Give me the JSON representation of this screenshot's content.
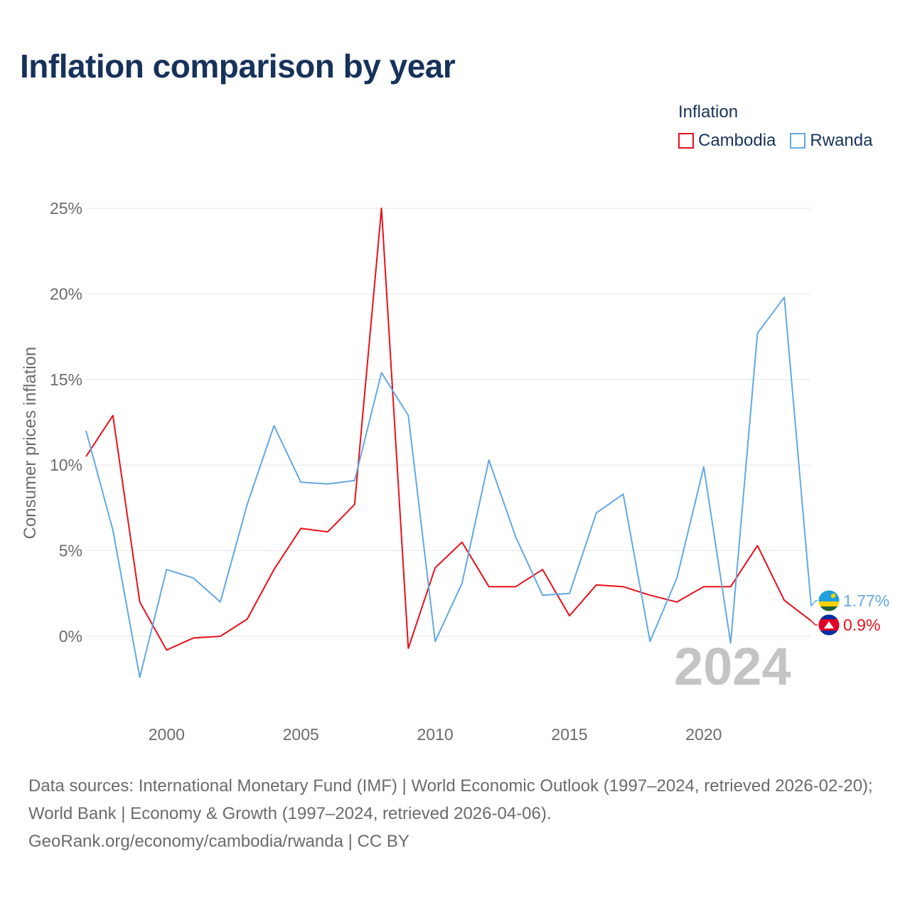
{
  "chart_data": {
    "type": "line",
    "title": "Inflation comparison by year",
    "ylabel": "Consumer prices inflation",
    "xlabel": "",
    "legend_title": "Inflation",
    "legend_position": "top-right",
    "x": [
      1997,
      1998,
      1999,
      2000,
      2001,
      2002,
      2003,
      2004,
      2005,
      2006,
      2007,
      2008,
      2009,
      2010,
      2011,
      2012,
      2013,
      2014,
      2015,
      2016,
      2017,
      2018,
      2019,
      2020,
      2021,
      2022,
      2023,
      2024
    ],
    "xlim": [
      1997,
      2024
    ],
    "ylim": [
      -5,
      25
    ],
    "y_ticks": [
      0,
      5,
      10,
      15,
      20,
      25
    ],
    "y_tick_labels": [
      "0%",
      "5%",
      "10%",
      "15%",
      "20%",
      "25%"
    ],
    "x_ticks": [
      2000,
      2005,
      2010,
      2015,
      2020
    ],
    "x_tick_labels": [
      "2000",
      "2005",
      "2010",
      "2015",
      "2020"
    ],
    "grid": true,
    "current_year_label": "2024",
    "series": [
      {
        "name": "Cambodia",
        "color": "#e8101a",
        "values": [
          10.5,
          12.9,
          2.0,
          -0.8,
          -0.1,
          0.0,
          1.0,
          3.9,
          6.3,
          6.1,
          7.7,
          25.0,
          -0.7,
          4.0,
          5.5,
          2.9,
          2.9,
          3.9,
          1.2,
          3.0,
          2.9,
          2.4,
          2.0,
          2.9,
          2.9,
          5.3,
          2.1,
          0.9
        ],
        "end_label": "0.9%",
        "flag": "cambodia-flag-icon"
      },
      {
        "name": "Rwanda",
        "color": "#63a8e3",
        "values": [
          12.0,
          6.2,
          -2.4,
          3.9,
          3.4,
          2.0,
          7.7,
          12.3,
          9.0,
          8.9,
          9.1,
          15.4,
          12.9,
          -0.3,
          3.1,
          10.3,
          5.8,
          2.4,
          2.5,
          7.2,
          8.3,
          -0.3,
          3.4,
          9.9,
          -0.4,
          17.7,
          19.8,
          1.77
        ],
        "end_label": "1.77%",
        "flag": "rwanda-flag-icon"
      }
    ]
  },
  "sources": {
    "line1": "Data sources: International Monetary Fund (IMF) | World Economic Outlook (1997–2024, retrieved 2026-02-20); World Bank | Economy & Growth (1997–2024, retrieved 2026-04-06).",
    "line2": "GeoRank.org/economy/cambodia/rwanda | CC BY"
  }
}
